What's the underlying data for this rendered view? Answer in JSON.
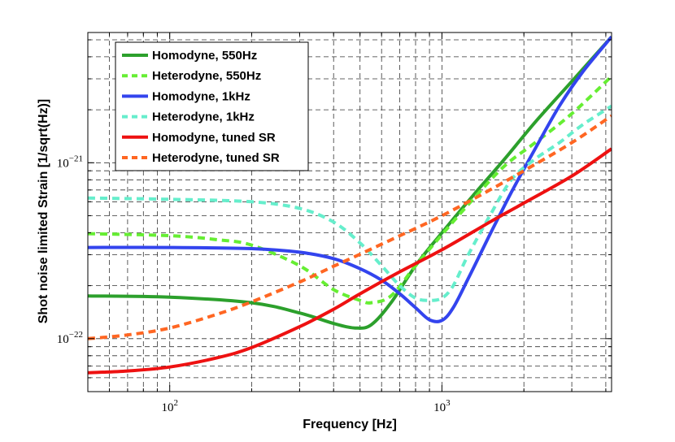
{
  "chart_data": {
    "type": "line",
    "title": "",
    "xlabel": "Frequency [Hz]",
    "ylabel": "Shot noise limited Strain [1/sqrt(Hz)]",
    "xscale": "log",
    "yscale": "log",
    "xlim": [
      50,
      4200
    ],
    "ylim": [
      5e-23,
      5.5e-21
    ],
    "grid": true,
    "legend_position": "top-left",
    "x_ticks": [
      {
        "value": 100,
        "base": "10",
        "exp": "2"
      },
      {
        "value": 1000,
        "base": "10",
        "exp": "3"
      }
    ],
    "y_ticks": [
      {
        "value": 1e-22,
        "base": "10",
        "exp": "−22"
      },
      {
        "value": 1e-21,
        "base": "10",
        "exp": "−21"
      }
    ],
    "series": [
      {
        "name": "Homodyne, 550Hz",
        "color": "#2ca02c",
        "dash": "solid",
        "x": [
          50,
          100,
          200,
          300,
          400,
          480,
          550,
          650,
          800,
          1000,
          1300,
          1700,
          2200,
          3000,
          4200
        ],
        "y": [
          1.75e-22,
          1.72e-22,
          1.6e-22,
          1.4e-22,
          1.22e-22,
          1.15e-22,
          1.2e-22,
          1.6e-22,
          2.6e-22,
          4e-22,
          6.5e-22,
          1.05e-21,
          1.7e-21,
          2.9e-21,
          5.2e-21
        ]
      },
      {
        "name": "Heterodyne, 550Hz",
        "color": "#66ee33",
        "dash": "dashed",
        "x": [
          50,
          100,
          150,
          200,
          300,
          400,
          500,
          550,
          650,
          800,
          1000,
          1300,
          1700,
          2200,
          3000,
          4200
        ],
        "y": [
          3.95e-22,
          3.85e-22,
          3.65e-22,
          3.4e-22,
          2.6e-22,
          1.9e-22,
          1.65e-22,
          1.6e-22,
          1.75e-22,
          2.6e-22,
          3.9e-22,
          6.2e-22,
          9.6e-22,
          1.3e-21,
          1.9e-21,
          3.1e-21
        ]
      },
      {
        "name": "Homodyne, 1kHz",
        "color": "#3344ee",
        "dash": "solid",
        "x": [
          50,
          100,
          200,
          300,
          400,
          500,
          600,
          700,
          800,
          900,
          1000,
          1100,
          1250,
          1500,
          1800,
          2200,
          2700,
          3300,
          4200
        ],
        "y": [
          3.3e-22,
          3.3e-22,
          3.25e-22,
          3.1e-22,
          2.85e-22,
          2.5e-22,
          2.15e-22,
          1.8e-22,
          1.5e-22,
          1.28e-22,
          1.27e-22,
          1.5e-22,
          2.2e-22,
          3.9e-22,
          6.8e-22,
          1.2e-21,
          2.1e-21,
          3.3e-21,
          5.2e-21
        ]
      },
      {
        "name": "Heterodyne, 1kHz",
        "color": "#66eecc",
        "dash": "dashed",
        "x": [
          50,
          100,
          200,
          300,
          400,
          500,
          600,
          700,
          800,
          900,
          1000,
          1100,
          1250,
          1500,
          1800,
          2200,
          2700,
          3300,
          4200
        ],
        "y": [
          6.3e-22,
          6.2e-22,
          6e-22,
          5.5e-22,
          4.6e-22,
          3.5e-22,
          2.6e-22,
          2e-22,
          1.7e-22,
          1.65e-22,
          1.7e-22,
          2e-22,
          3e-22,
          5e-22,
          8e-22,
          1.05e-21,
          1.3e-21,
          1.65e-21,
          2.1e-21
        ]
      },
      {
        "name": "Homodyne, tuned SR",
        "color": "#ee1111",
        "dash": "solid",
        "x": [
          50,
          70,
          100,
          150,
          200,
          300,
          400,
          500,
          700,
          1000,
          1500,
          2000,
          3000,
          4200
        ],
        "y": [
          6.4e-23,
          6.55e-23,
          6.9e-23,
          7.8e-23,
          8.9e-23,
          1.17e-22,
          1.47e-22,
          1.8e-22,
          2.4e-22,
          3.2e-22,
          4.6e-22,
          5.9e-22,
          8.4e-22,
          1.2e-21
        ]
      },
      {
        "name": "Heterodyne, tuned SR",
        "color": "#ff6622",
        "dash": "dashed",
        "x": [
          50,
          70,
          100,
          150,
          200,
          300,
          400,
          500,
          700,
          1000,
          1500,
          2000,
          3000,
          4200
        ],
        "y": [
          1e-22,
          1.05e-22,
          1.15e-22,
          1.38e-22,
          1.62e-22,
          2.1e-22,
          2.58e-22,
          3.02e-22,
          3.85e-22,
          5e-22,
          7e-22,
          9e-22,
          1.3e-21,
          1.85e-21
        ]
      }
    ]
  }
}
